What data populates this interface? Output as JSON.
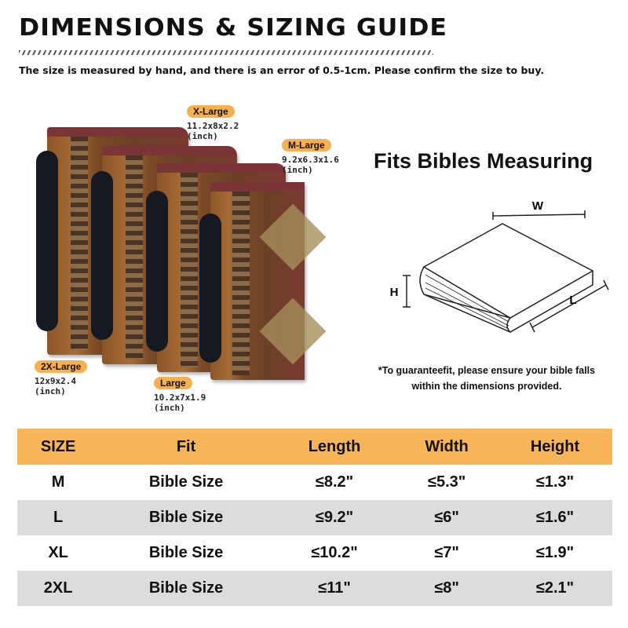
{
  "header": {
    "title": "DIMENSIONS & SIZING GUIDE",
    "subtitle": "The size is measured by hand, and there is an error of 0.5-1cm. Please confirm the size to buy."
  },
  "sizes": [
    {
      "label": "X-Large",
      "dims": "11.2x8x2.2",
      "unit": "(inch)"
    },
    {
      "label": "M-Large",
      "dims": "9.2x6.3x1.6",
      "unit": "(inch)"
    },
    {
      "label": "2X-Large",
      "dims": "12x9x2.4",
      "unit": "(inch)"
    },
    {
      "label": "Large",
      "dims": "10.2x7x1.9",
      "unit": "(inch)"
    }
  ],
  "fits": {
    "title": "Fits Bibles Measuring",
    "w": "W",
    "h": "H",
    "l": "L",
    "note_line1": "*To guaranteefit, please ensure your bible falls",
    "note_line2": "within the dimensions provided."
  },
  "table": {
    "headers": [
      "SIZE",
      "Fit",
      "Length",
      "Width",
      "Height"
    ],
    "rows": [
      [
        "M",
        "Bible Size",
        "≤8.2\"",
        "≤5.3\"",
        "≤1.3\""
      ],
      [
        "L",
        "Bible Size",
        "≤9.2\"",
        "≤6\"",
        "≤1.6\""
      ],
      [
        "XL",
        "Bible Size",
        "≤10.2\"",
        "≤7\"",
        "≤1.9\""
      ],
      [
        "2XL",
        "Bible Size",
        "≤11\"",
        "≤8\"",
        "≤2.1\""
      ]
    ]
  },
  "colors": {
    "accent": "#f7b558",
    "row_alt": "#dcdcdc"
  }
}
